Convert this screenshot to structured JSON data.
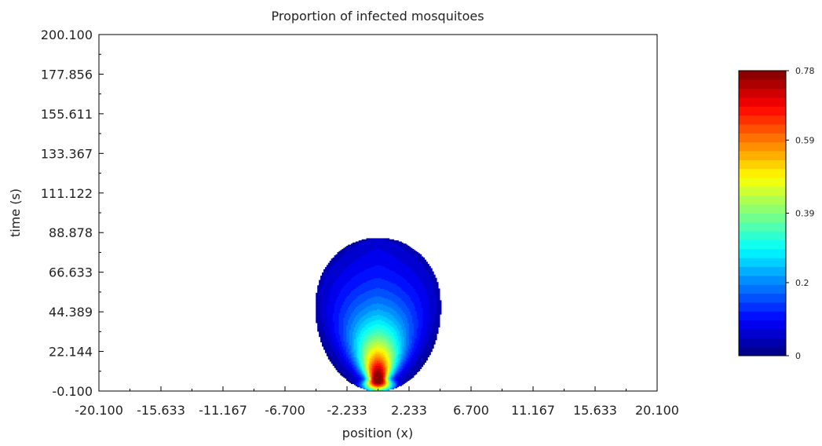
{
  "chart_data": {
    "type": "heatmap",
    "title": "Proportion of infected mosquitoes",
    "xlabel": "position (x)",
    "ylabel": "time (s)",
    "xlim": [
      -20.1,
      20.1
    ],
    "ylim": [
      -0.1,
      200.1
    ],
    "x_ticks": [
      "-20.100",
      "-15.633",
      "-11.167",
      "-6.700",
      "-2.233",
      "2.233",
      "6.700",
      "11.167",
      "15.633",
      "20.100"
    ],
    "y_ticks": [
      "-0.100",
      "22.144",
      "44.389",
      "66.633",
      "88.878",
      "111.122",
      "133.367",
      "155.611",
      "177.856",
      "200.100"
    ],
    "colorbar": {
      "min": 0,
      "max": 0.78,
      "ticks": [
        "0",
        "0.2",
        "0.39",
        "0.59",
        "0.78"
      ],
      "tick_values": [
        0,
        0.2,
        0.39,
        0.59,
        0.78
      ],
      "colormap": "jet",
      "levels": 32
    },
    "region": {
      "shape": "egg-shaped blob",
      "center_x": 0,
      "x_halfwidth_max": 4.5,
      "y_at_max_width": 47,
      "y_bottom": 0,
      "y_top": 86,
      "peak": {
        "x": 0,
        "y": 7,
        "value": 0.78
      }
    }
  }
}
